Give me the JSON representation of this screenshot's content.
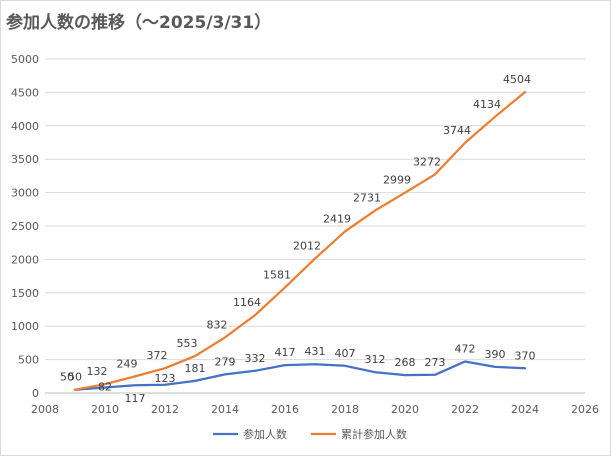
{
  "title": "参加人数の推移（～2025/3/31）",
  "chart_data": {
    "type": "line",
    "title": "参加人数の推移（～2025/3/31）",
    "xlabel": "",
    "ylabel": "",
    "xlim": [
      2008,
      2026
    ],
    "xticks": [
      2008,
      2010,
      2012,
      2014,
      2016,
      2018,
      2020,
      2022,
      2024,
      2026
    ],
    "ylim": [
      0,
      5000
    ],
    "yticks": [
      0,
      500,
      1000,
      1500,
      2000,
      2500,
      3000,
      3500,
      4000,
      4500,
      5000
    ],
    "grid": "horizontal",
    "legend_position": "bottom",
    "x": [
      2009,
      2010,
      2011,
      2012,
      2013,
      2014,
      2015,
      2016,
      2017,
      2018,
      2019,
      2020,
      2021,
      2022,
      2023,
      2024
    ],
    "series": [
      {
        "name": "参加人数",
        "color": "#4472c4",
        "values": [
          50,
          82,
          117,
          123,
          181,
          279,
          332,
          417,
          431,
          407,
          312,
          268,
          273,
          472,
          390,
          370
        ]
      },
      {
        "name": "累計参加人数",
        "color": "#ed7d31",
        "values": [
          50,
          132,
          249,
          372,
          553,
          832,
          1164,
          1581,
          2012,
          2419,
          2731,
          2999,
          3272,
          3744,
          4134,
          4504
        ]
      }
    ]
  }
}
